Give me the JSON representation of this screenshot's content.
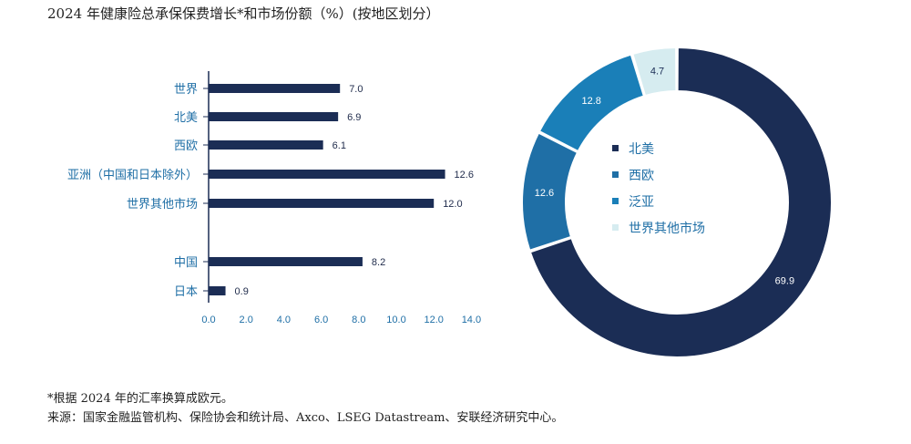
{
  "title": "2024 年健康险总承保保费增长*和市场份额（%）(按地区划分）",
  "footnote": "*根据 2024 年的汇率换算成欧元。",
  "source": "来源：国家金融监管机构、保险协会和统计局、Axco、LSEG Datastream、安联经济研究中心。",
  "colors": {
    "bar": "#1b2d55",
    "north_america": "#1b2d55",
    "west_europe": "#1f6fa6",
    "pan_asia": "#1a7fb8",
    "rest_of_world": "#d6ecf0",
    "label_blue": "#1f6fa6"
  },
  "chart_data": [
    {
      "type": "bar",
      "orientation": "horizontal",
      "categories": [
        "世界",
        "北美",
        "西欧",
        "亚洲（中国和日本除外）",
        "世界其他市场",
        "中国",
        "日本"
      ],
      "values": [
        7.0,
        6.9,
        6.1,
        12.6,
        12.0,
        8.2,
        0.9
      ],
      "value_labels": [
        "7.0",
        "6.9",
        "6.1",
        "12.6",
        "12.0",
        "8.2",
        "0.9"
      ],
      "xlim": [
        0,
        14
      ],
      "xticks": [
        "0.0",
        "2.0",
        "4.0",
        "6.0",
        "8.0",
        "10.0",
        "12.0",
        "14.0"
      ],
      "group_gap_after_index": 4
    },
    {
      "type": "pie",
      "style": "donut",
      "labels": [
        "北美",
        "西欧",
        "泛亚",
        "世界其他市场"
      ],
      "values": [
        69.9,
        12.6,
        12.8,
        4.7
      ],
      "value_labels": [
        "69.9",
        "12.6",
        "12.8",
        "4.7"
      ],
      "legend": "center"
    }
  ]
}
